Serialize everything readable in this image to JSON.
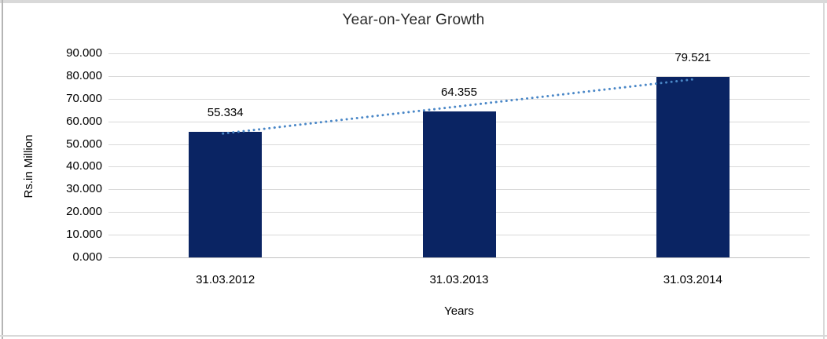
{
  "chart_data": {
    "type": "bar",
    "title": "Year-on-Year Growth",
    "xlabel": "Years",
    "ylabel": "Rs.in Million",
    "categories": [
      "31.03.2012",
      "31.03.2013",
      "31.03.2014"
    ],
    "values": [
      55.334,
      64.355,
      79.521
    ],
    "data_labels": [
      "55.334",
      "64.355",
      "79.521"
    ],
    "ylim": [
      0,
      90
    ],
    "ytick_step": 10,
    "ytick_labels": [
      "0.000",
      "10.000",
      "20.000",
      "30.000",
      "40.000",
      "50.000",
      "60.000",
      "70.000",
      "80.000",
      "90.000"
    ],
    "grid": true,
    "legend_position": "none",
    "bar_color": "#0a2463",
    "gridline_color": "#d9d9d9",
    "axis_line_color": "#c0c0c0",
    "trendline": {
      "type": "linear",
      "style": "dotted",
      "color": "#4a87c7"
    },
    "frame_color": "#d9d9d9"
  }
}
